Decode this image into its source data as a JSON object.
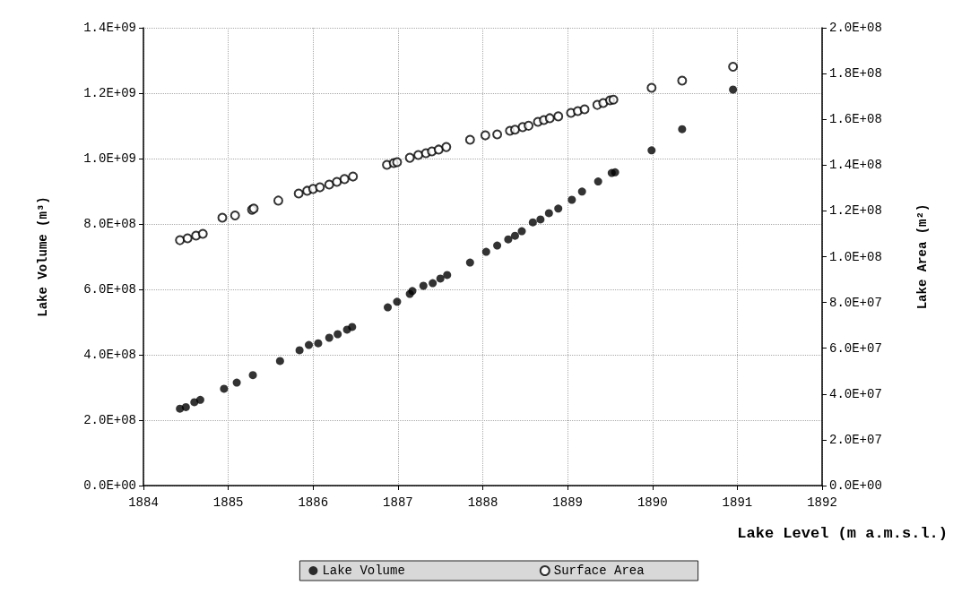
{
  "chart_data": {
    "type": "scatter",
    "xlabel": "Lake Level (m a.m.s.l.)",
    "ylabel": "Lake Volume (m³)",
    "y2label": "Lake Area (m²)",
    "xlim": [
      1884,
      1892
    ],
    "xticks": [
      1884,
      1885,
      1886,
      1887,
      1888,
      1889,
      1890,
      1891,
      1892
    ],
    "ylim": [
      0,
      1400000000
    ],
    "yticks": [
      {
        "value": 0,
        "label": "0.0E+00"
      },
      {
        "value": 200000000,
        "label": "2.0E+08"
      },
      {
        "value": 400000000,
        "label": "4.0E+08"
      },
      {
        "value": 600000000,
        "label": "6.0E+08"
      },
      {
        "value": 800000000,
        "label": "8.0E+08"
      },
      {
        "value": 1000000000,
        "label": "1.0E+09"
      },
      {
        "value": 1200000000,
        "label": "1.2E+09"
      },
      {
        "value": 1400000000,
        "label": "1.4E+09"
      }
    ],
    "y2lim": [
      0,
      200000000
    ],
    "y2ticks": [
      {
        "value": 0,
        "label": "0.0E+00"
      },
      {
        "value": 20000000,
        "label": "2.0E+07"
      },
      {
        "value": 40000000,
        "label": "4.0E+07"
      },
      {
        "value": 60000000,
        "label": "6.0E+07"
      },
      {
        "value": 80000000,
        "label": "8.0E+07"
      },
      {
        "value": 100000000,
        "label": "1.0E+08"
      },
      {
        "value": 120000000,
        "label": "1.2E+08"
      },
      {
        "value": 140000000,
        "label": "1.4E+08"
      },
      {
        "value": 160000000,
        "label": "1.6E+08"
      },
      {
        "value": 180000000,
        "label": "1.8E+08"
      },
      {
        "value": 200000000,
        "label": "2.0E+08"
      }
    ],
    "grid": true,
    "legend": "bottom",
    "marker": "circle",
    "series": [
      {
        "name": "Lake Volume",
        "color": "#000000",
        "x": [
          1884.43,
          1884.5,
          1884.6,
          1884.67,
          1884.95,
          1885.1,
          1885.29,
          1885.61,
          1885.84,
          1885.95,
          1886.06,
          1886.19,
          1886.29,
          1886.4,
          1886.46,
          1886.88,
          1886.99,
          1887.14,
          1887.17,
          1887.3,
          1887.41,
          1887.5,
          1887.58,
          1887.85,
          1888.04,
          1888.17,
          1888.3,
          1888.38,
          1888.46,
          1888.59,
          1888.68,
          1888.78,
          1888.89,
          1889.05,
          1889.17,
          1889.36,
          1889.52,
          1889.56,
          1889.99,
          1890.35,
          1890.95
        ],
        "values": [
          235000000,
          240000000,
          255000000,
          262000000,
          296000000,
          315000000,
          338000000,
          381000000,
          414000000,
          430000000,
          435000000,
          452000000,
          463000000,
          477000000,
          485000000,
          545000000,
          562000000,
          586000000,
          595000000,
          611000000,
          619000000,
          633000000,
          644000000,
          682000000,
          715000000,
          734000000,
          753000000,
          764000000,
          778000000,
          805000000,
          814000000,
          833000000,
          847000000,
          874000000,
          899000000,
          930000000,
          956000000,
          958000000,
          1025000000,
          1090000000,
          1211000000
        ]
      },
      {
        "name": "Surface Area",
        "color": "#000000",
        "axis": "y2",
        "x": [
          1884.43,
          1884.52,
          1884.62,
          1884.7,
          1884.93,
          1885.08,
          1885.28,
          1885.3,
          1885.59,
          1885.83,
          1885.93,
          1886.0,
          1886.08,
          1886.19,
          1886.28,
          1886.37,
          1886.47,
          1886.87,
          1886.95,
          1886.99,
          1887.14,
          1887.24,
          1887.33,
          1887.4,
          1887.48,
          1887.57,
          1887.85,
          1888.03,
          1888.17,
          1888.32,
          1888.38,
          1888.47,
          1888.54,
          1888.65,
          1888.72,
          1888.79,
          1888.89,
          1889.04,
          1889.12,
          1889.2,
          1889.35,
          1889.42,
          1889.5,
          1889.54,
          1889.99,
          1890.35,
          1890.95
        ],
        "values": [
          107200000,
          108000000,
          109200000,
          110000000,
          117000000,
          118000000,
          120500000,
          121000000,
          124500000,
          127600000,
          128800000,
          129600000,
          130300000,
          131500000,
          132700000,
          133900000,
          135000000,
          140100000,
          140900000,
          141300000,
          143200000,
          144400000,
          145200000,
          146000000,
          146800000,
          147900000,
          151100000,
          153000000,
          153400000,
          155000000,
          155500000,
          156600000,
          157200000,
          158900000,
          159700000,
          160500000,
          161300000,
          162800000,
          163600000,
          164400000,
          166300000,
          167100000,
          168300000,
          168600000,
          173800000,
          176900000,
          183000000
        ]
      }
    ]
  }
}
